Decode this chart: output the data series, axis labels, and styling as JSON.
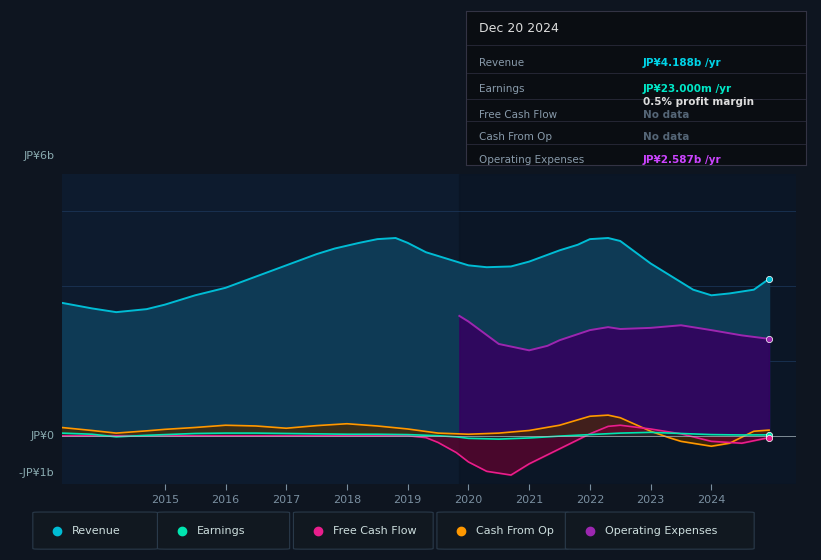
{
  "bg_color": "#0e1520",
  "plot_bg_color": "#0d1b2e",
  "tooltip_bg": "#0a0d12",
  "title": "Dec 20 2024",
  "tooltip": {
    "Revenue": "JP¥4.188b /yr",
    "Earnings": "JP¥23.000m /yr",
    "profit_margin": "0.5% profit margin",
    "Free_Cash_Flow": "No data",
    "Cash_From_Op": "No data",
    "Operating_Expenses": "JP¥2.587b /yr"
  },
  "tooltip_colors": {
    "Revenue": "#00d4e8",
    "Earnings": "#00e8c8",
    "Operating_Expenses": "#cc44ff",
    "nodata": "#556677"
  },
  "ylabel_top": "JP¥6b",
  "ylabel_zero": "JP¥0",
  "ylabel_bottom": "-JP¥1b",
  "ylim": [
    -1.3,
    7.0
  ],
  "xlim": [
    2013.3,
    2025.4
  ],
  "xticks": [
    2015,
    2016,
    2017,
    2018,
    2019,
    2020,
    2021,
    2022,
    2023,
    2024
  ],
  "legend_items": [
    {
      "label": "Revenue",
      "color": "#00bcd4"
    },
    {
      "label": "Earnings",
      "color": "#00e5b0"
    },
    {
      "label": "Free Cash Flow",
      "color": "#e91e8c"
    },
    {
      "label": "Cash From Op",
      "color": "#ff9800"
    },
    {
      "label": "Operating Expenses",
      "color": "#9c27b0"
    }
  ],
  "revenue": {
    "x": [
      2013.3,
      2013.8,
      2014.2,
      2014.7,
      2015.0,
      2015.5,
      2016.0,
      2016.5,
      2017.0,
      2017.5,
      2017.8,
      2018.2,
      2018.5,
      2018.8,
      2019.0,
      2019.3,
      2019.7,
      2020.0,
      2020.3,
      2020.7,
      2021.0,
      2021.5,
      2021.8,
      2022.0,
      2022.3,
      2022.5,
      2023.0,
      2023.3,
      2023.7,
      2024.0,
      2024.3,
      2024.7,
      2024.95
    ],
    "y": [
      3.55,
      3.4,
      3.3,
      3.38,
      3.5,
      3.75,
      3.95,
      4.25,
      4.55,
      4.85,
      5.0,
      5.15,
      5.25,
      5.28,
      5.15,
      4.9,
      4.7,
      4.55,
      4.5,
      4.52,
      4.65,
      4.95,
      5.1,
      5.25,
      5.28,
      5.2,
      4.6,
      4.3,
      3.9,
      3.75,
      3.8,
      3.9,
      4.188
    ],
    "color": "#00bcd4",
    "fill_color": "#0e3a55"
  },
  "earnings": {
    "x": [
      2013.3,
      2013.8,
      2014.2,
      2014.7,
      2015.0,
      2015.5,
      2016.0,
      2016.5,
      2017.0,
      2017.5,
      2018.0,
      2018.5,
      2019.0,
      2019.5,
      2019.8,
      2020.0,
      2020.5,
      2021.0,
      2021.5,
      2022.0,
      2022.5,
      2023.0,
      2023.5,
      2024.0,
      2024.5,
      2024.95
    ],
    "y": [
      0.07,
      0.04,
      -0.03,
      0.01,
      0.03,
      0.06,
      0.07,
      0.07,
      0.06,
      0.05,
      0.04,
      0.04,
      0.03,
      0.0,
      -0.03,
      -0.07,
      -0.09,
      -0.06,
      -0.01,
      0.03,
      0.07,
      0.09,
      0.06,
      0.03,
      0.02,
      0.023
    ],
    "color": "#00e5b0",
    "fill_color": "#003d30"
  },
  "free_cash_flow": {
    "x": [
      2013.3,
      2013.8,
      2014.2,
      2014.7,
      2015.0,
      2015.5,
      2016.0,
      2016.5,
      2017.0,
      2017.5,
      2018.0,
      2018.5,
      2019.0,
      2019.3,
      2019.5,
      2019.8,
      2020.0,
      2020.3,
      2020.7,
      2021.0,
      2021.5,
      2022.0,
      2022.3,
      2022.5,
      2023.0,
      2023.5,
      2024.0,
      2024.5,
      2024.95
    ],
    "y": [
      0.0,
      0.0,
      0.0,
      0.0,
      0.0,
      0.0,
      0.0,
      0.0,
      0.0,
      0.0,
      0.0,
      0.0,
      0.0,
      -0.05,
      -0.18,
      -0.45,
      -0.7,
      -0.95,
      -1.05,
      -0.75,
      -0.35,
      0.05,
      0.25,
      0.28,
      0.18,
      0.05,
      -0.15,
      -0.2,
      -0.05
    ],
    "color": "#e91e8c",
    "fill_color": "#6b0030"
  },
  "cash_from_op": {
    "x": [
      2013.3,
      2013.8,
      2014.2,
      2014.7,
      2015.0,
      2015.5,
      2016.0,
      2016.5,
      2017.0,
      2017.5,
      2018.0,
      2018.5,
      2019.0,
      2019.5,
      2020.0,
      2020.5,
      2021.0,
      2021.5,
      2022.0,
      2022.3,
      2022.5,
      2023.0,
      2023.3,
      2023.5,
      2024.0,
      2024.3,
      2024.7,
      2024.95
    ],
    "y": [
      0.22,
      0.14,
      0.07,
      0.13,
      0.17,
      0.22,
      0.28,
      0.26,
      0.2,
      0.27,
      0.32,
      0.26,
      0.18,
      0.07,
      0.04,
      0.07,
      0.14,
      0.28,
      0.52,
      0.55,
      0.48,
      0.12,
      -0.05,
      -0.15,
      -0.28,
      -0.2,
      0.12,
      0.15
    ],
    "color": "#ff9800",
    "fill_color": "#4a2a00"
  },
  "operating_expenses": {
    "x": [
      2019.85,
      2020.0,
      2020.5,
      2021.0,
      2021.3,
      2021.5,
      2022.0,
      2022.3,
      2022.5,
      2023.0,
      2023.5,
      2024.0,
      2024.5,
      2024.95
    ],
    "y": [
      3.2,
      3.05,
      2.45,
      2.28,
      2.4,
      2.55,
      2.82,
      2.9,
      2.85,
      2.88,
      2.95,
      2.82,
      2.68,
      2.587
    ],
    "color": "#9c27b0",
    "fill_color": "#350060"
  },
  "shaded_start": 2019.85,
  "grid_color": "#1e3a5f",
  "zero_line_color": "#b0bec5",
  "text_color": "#7a8fa0",
  "axis_label_color": "#8aabb0"
}
